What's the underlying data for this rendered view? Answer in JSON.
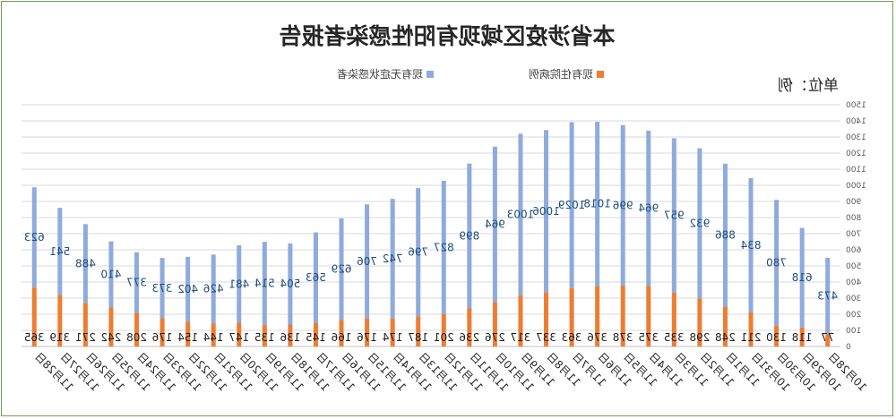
{
  "chart_data": {
    "type": "bar",
    "stacked": true,
    "title": "本省涉疫区域现有阳性感染者报告",
    "unit_label": "单位：例",
    "categories": [
      "10月28日",
      "10月29日",
      "10月30日",
      "10月31日",
      "11月1日",
      "11月2日",
      "11月3日",
      "11月4日",
      "11月5日",
      "11月6日",
      "11月7日",
      "11月8日",
      "11月9日",
      "11月10日",
      "11月11日",
      "11月12日",
      "11月13日",
      "11月14日",
      "11月15日",
      "11月16日",
      "11月17日",
      "11月18日",
      "11月19日",
      "11月20日",
      "11月21日",
      "11月22日",
      "11月23日",
      "11月24日",
      "11月25日",
      "11月26日",
      "11月27日",
      "11月28日"
    ],
    "series": [
      {
        "name": "现有住院病例",
        "color": "#ed7d31",
        "values": [
          77,
          118,
          130,
          211,
          248,
          298,
          335,
          375,
          378,
          376,
          363,
          337,
          317,
          276,
          236,
          201,
          187,
          174,
          176,
          166,
          145,
          136,
          135,
          147,
          144,
          154,
          176,
          208,
          242,
          271,
          319,
          365
        ]
      },
      {
        "name": "现有无症状感染者",
        "color": "#8faadc",
        "values": [
          473,
          618,
          780,
          834,
          886,
          932,
          957,
          964,
          996,
          1018,
          1029,
          1006,
          1003,
          964,
          899,
          827,
          796,
          742,
          706,
          629,
          563,
          504,
          514,
          481,
          426,
          402,
          373,
          377,
          410,
          488,
          541,
          623
        ]
      }
    ],
    "ylim": [
      0,
      1500
    ],
    "yticks": [
      0,
      100,
      200,
      300,
      400,
      500,
      600,
      700,
      800,
      900,
      1000,
      1100,
      1200,
      1300,
      1400,
      1500
    ],
    "legend_position": "top",
    "grid": true,
    "mirrored": true
  }
}
